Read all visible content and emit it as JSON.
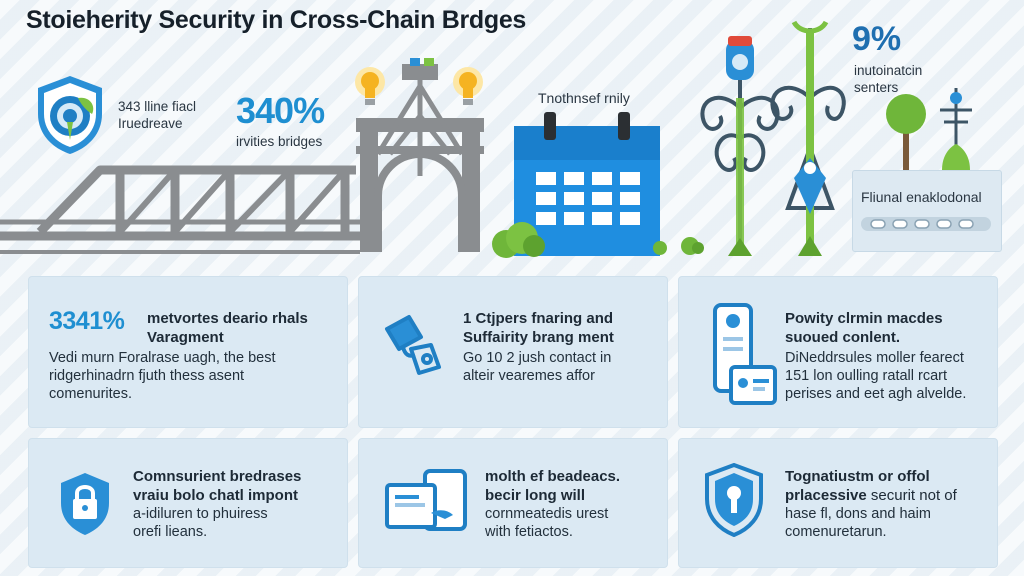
{
  "title": "Stoieherity Security in Cross-Chain Brdges",
  "top_left_stat": {
    "line1": "343 lline fiacl",
    "line2": "Iruedreave"
  },
  "top_pct": {
    "value": "340%",
    "caption": "irvities bridges"
  },
  "calendar_label": "Tnothnsef rnily",
  "top_right_stat": {
    "value": "9%",
    "line1": "inutoinatcin",
    "line2": "senters"
  },
  "note_box": {
    "label": "Fliunal enaklodonal"
  },
  "cards": [
    {
      "pct": "3341%",
      "head1": "metvortes deario rhals",
      "head2": "Varagment",
      "body1": "Vedi murn Foralrase uagh, the best",
      "body2": "ridgerhinadrn fjuth thess asent",
      "body3": "comenurites."
    },
    {
      "head1": "1 Ctjpers fnaring and",
      "head2": "Suffairity brang ment",
      "body1": "Go 10 2 jush contact in",
      "body2": "alteir vearemes affor"
    },
    {
      "head1": "Powity clrmin macdes",
      "head2": "suoued conlent.",
      "body1": "DiNeddrsules moller fearect",
      "body2": "151 lon oulling ratall rcart",
      "body3": "perises and eet agh alvelde."
    },
    {
      "head1": "Comnsurient bredrases",
      "head2": "vraiu bolo chatl impont",
      "body1": "a-idiluren to phuiress",
      "body2": "orefi lieans."
    },
    {
      "head1": "molth ef beadeacs.",
      "head2": "becir long will",
      "body1": "cornmeatedis urest",
      "body2": "with fetiactos."
    },
    {
      "head1": "Tognatiustm or offol",
      "head2": "prlacessive",
      "head2b": "securit not of",
      "body1": "hase fl, dons and haim",
      "body2": "comenuretarun."
    }
  ],
  "colors": {
    "accent": "#1f8fd1",
    "card_bg": "#dbe9f3",
    "bridge": "#8a8d90",
    "calendar": "#1f8ee0",
    "green": "#7cc242"
  },
  "icons": [
    "shield-globe-icon",
    "lightbulb-icon",
    "bridge-icon",
    "calendar-icon",
    "tree-icon",
    "bag-link-icon",
    "phone-icon",
    "lock-icon",
    "monitor-icon",
    "shield-lock-icon"
  ]
}
